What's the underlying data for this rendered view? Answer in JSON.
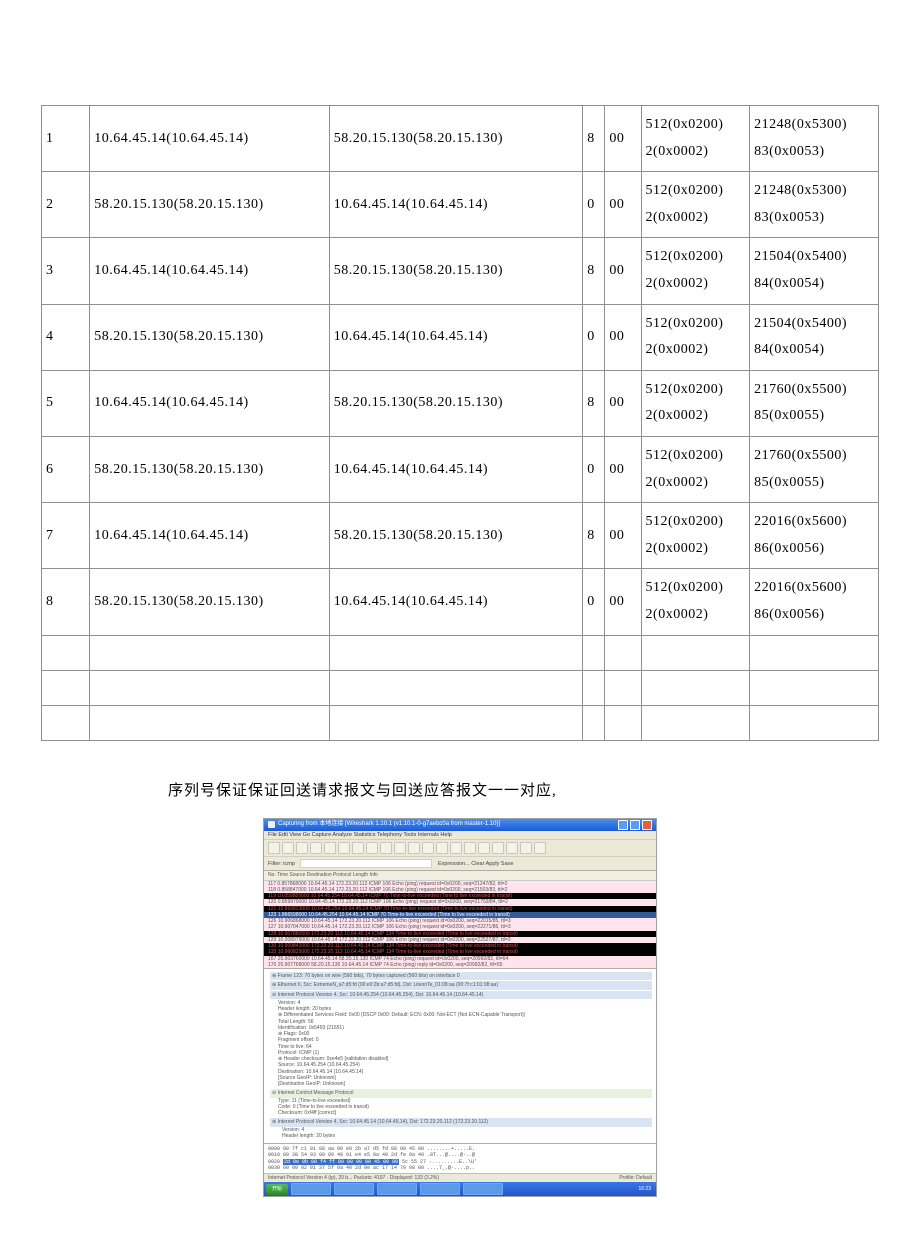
{
  "table": {
    "rows": [
      {
        "n": "1",
        "a": "10.64.45.14(10.64.45.14)",
        "b": "58.20.15.130(58.20.15.130)",
        "c": "8",
        "d": "00",
        "e": "512(0x0200)\n2(0x0002)",
        "f": "21248(0x5300)\n83(0x0053)"
      },
      {
        "n": "2",
        "a": "58.20.15.130(58.20.15.130)",
        "b": "10.64.45.14(10.64.45.14)",
        "c": "0",
        "d": "00",
        "e": "512(0x0200)\n2(0x0002)",
        "f": "21248(0x5300)\n83(0x0053)"
      },
      {
        "n": "3",
        "a": "10.64.45.14(10.64.45.14)",
        "b": "58.20.15.130(58.20.15.130)",
        "c": "8",
        "d": "00",
        "e": "512(0x0200)\n2(0x0002)",
        "f": "21504(0x5400)\n84(0x0054)"
      },
      {
        "n": "4",
        "a": "58.20.15.130(58.20.15.130)",
        "b": "10.64.45.14(10.64.45.14)",
        "c": "0",
        "d": "00",
        "e": "512(0x0200)\n2(0x0002)",
        "f": "21504(0x5400)\n84(0x0054)"
      },
      {
        "n": "5",
        "a": "10.64.45.14(10.64.45.14)",
        "b": "58.20.15.130(58.20.15.130)",
        "c": "8",
        "d": "00",
        "e": "512(0x0200)\n2(0x0002)",
        "f": "21760(0x5500)\n85(0x0055)"
      },
      {
        "n": "6",
        "a": "58.20.15.130(58.20.15.130)",
        "b": "10.64.45.14(10.64.45.14)",
        "c": "0",
        "d": "00",
        "e": "512(0x0200)\n2(0x0002)",
        "f": "21760(0x5500)\n85(0x0055)"
      },
      {
        "n": "7",
        "a": "10.64.45.14(10.64.45.14)",
        "b": "58.20.15.130(58.20.15.130)",
        "c": "8",
        "d": "00",
        "e": "512(0x0200)\n2(0x0002)",
        "f": "22016(0x5600)\n86(0x0056)"
      },
      {
        "n": "8",
        "a": "58.20.15.130(58.20.15.130)",
        "b": "10.64.45.14(10.64.45.14)",
        "c": "0",
        "d": "00",
        "e": "512(0x0200)\n2(0x0002)",
        "f": "22016(0x5600)\n86(0x0056)"
      }
    ],
    "empty_rows": 3
  },
  "note": "序列号保证保证回送请求报文与回送应答报文一一对应,",
  "shot": {
    "title": "Capturing from 本地连接    [Wireshark 1.10.1  (v1.10.1-0-g7aebc0a from master-1.10)]",
    "menu": "File  Edit  View  Go  Capture  Analyze  Statistics  Telephony  Tools  Internals  Help",
    "filter_label": "Filter:   icmp",
    "filter_tail": "Expression...   Clear   Apply   Save",
    "header": "No.      Time               Source                Destination          Protocol  Length  Info",
    "packets": [
      {
        "cls": "pink",
        "t": "117  0.857868000 10.64.45.14        172.23.20.112      ICMP     106 Echo (ping) request  id=0x0200, seq=21247/82, ttl=2"
      },
      {
        "cls": "pink",
        "t": "118  0.858847000 10.64.45.14        172.23.20.112      ICMP     106 Echo (ping) request  id=0x0200, seq=21503/83, ttl=2"
      },
      {
        "cls": "black",
        "t": "119 10.859889000 10.64.45.254       10.64.45.14        ICMP      70 Time-to-live exceeded (Time to live exceeded in transit)"
      },
      {
        "cls": "pink",
        "t": "120  0.859979000 10.64.45.14        172.23.20.112      ICMP     106 Echo (ping) request  id=0x0200, seq=21759/84, ttl=2"
      },
      {
        "cls": "black",
        "t": "121 10.860823000 10.64.45.254       10.64.45.14        ICMP      70 Time-to-live exceeded (Time to live exceeded in transit)"
      },
      {
        "cls": "sel",
        "t": "123  1.866598000 10.64.45.254       10.64.45.14        ICMP      70 Time-to-live exceeded (Time to live exceeded in transit)"
      },
      {
        "cls": "pink",
        "t": "126 10.906868000 10.64.45.14        172.23.20.112      ICMP     106 Echo (ping) request  id=0x0200, seq=22015/85, ttl=3"
      },
      {
        "cls": "pink",
        "t": "127 10.907047000 10.64.45.14        172.23.20.112      ICMP     106 Echo (ping) request  id=0x0200, seq=22271/86, ttl=3"
      },
      {
        "cls": "black",
        "t": "128 10.907880000 172.23.20.113      10.64.45.14        ICMP     134 Time-to-live exceeded (Time to live exceeded in transit)"
      },
      {
        "cls": "pink",
        "t": "129 10.908979000 10.64.45.14        172.23.20.112      ICMP     106 Echo (ping) request  id=0x0200, seq=22527/87, ttl=3"
      },
      {
        "cls": "black",
        "t": "130 10.909843000 172.23.20.113      10.64.45.14        ICMP     134 Time-to-live exceeded (Time to live exceeded in transit)"
      },
      {
        "cls": "black",
        "t": "133 10.960825000 172.23.20.113      10.64.45.14        ICMP     134 Time-to-live exceeded (Time to live exceeded in transit)"
      },
      {
        "cls": "pink",
        "t": "167 25.903760000 10.64.45.14        58.20.15.130       ICMP      74 Echo (ping) request  id=0x0200, seq=20992/82, ttl=64"
      },
      {
        "cls": "pink",
        "t": "170 25.907768000 58.20.15.130       10.64.45.14        ICMP      74 Echo (ping) reply    id=0x0200, seq=20992/82, ttl=55"
      }
    ],
    "details": {
      "frame": "⊕ Frame 123: 70 bytes on wire (560 bits), 70 bytes captured (560 bits) on interface 0",
      "eth": "⊕ Ethernet II, Src: ExtremeN_a7:d5:fd (00:e0:2b:a7:d5:fd), Dst: LiteonTe_01:08:aa (00:7f:c1:01:08:aa)",
      "ip_head": "⊖ Internet Protocol Version 4, Src: 10.64.45.254 (10.64.45.254), Dst: 10.64.45.14 (10.64.45.14)",
      "ip_lines": [
        "Version: 4",
        "Header length: 20 bytes",
        "⊕ Differentiated Services Field: 0x00 (DSCP 0x00: Default; ECN: 0x00: Not-ECT (Not ECN-Capable Transport))",
        "Total Length: 56",
        "Identification: 0x5493 (21651)",
        "⊕ Flags: 0x00",
        "Fragment offset: 0",
        "Time to live: 64",
        "Protocol: ICMP (1)",
        "⊕ Header checksum: 0xe4e5 [validation disabled]",
        "Source: 10.64.45.254 (10.64.45.254)",
        "Destination: 10.64.45.14 (10.64.45.14)",
        "[Source GeoIP: Unknown]",
        "[Destination GeoIP: Unknown]"
      ],
      "icmp_head": "⊖ Internet Control Message Protocol",
      "icmp_lines": [
        "Type: 11 (Time-to-live exceeded)",
        "Code: 0 (Time to live exceeded in transit)",
        "Checksum: 0xf4ff [correct]"
      ],
      "nested_ip": "⊕ Internet Protocol Version 4, Src: 10.64.45.14 (10.64.45.14), Dst: 172.23.20.112 (172.23.20.112)",
      "data": [
        "Version: 4",
        "Header length: 20 bytes"
      ]
    },
    "hex": [
      "0000  00 7f c1 01 08 aa 00 e0 2b a7 d5 fd 08 00 45 00  ........+.....E.",
      "0010  00 38 54 93 00 00 40 01 e4 e5 0a 40 2d fe 0a 40  .8T...@....@-..@",
      "0020  2d 0e 0b 00 f4 ff 00 00 00 00 45 00 00 5c 55 27  -.........E..\\U'",
      "0030  00 00 02 01 37 5f 0a 40 2d 0e ac 17 14 70 08 00  ....7_.@-....p.."
    ],
    "status_left": "Internet Protocol Version 4 (ip), 20 b...  Packets: 4197 · Displayed: 133 (3.2%)",
    "status_right": "Profile: Default",
    "tray_time": "16:23"
  }
}
